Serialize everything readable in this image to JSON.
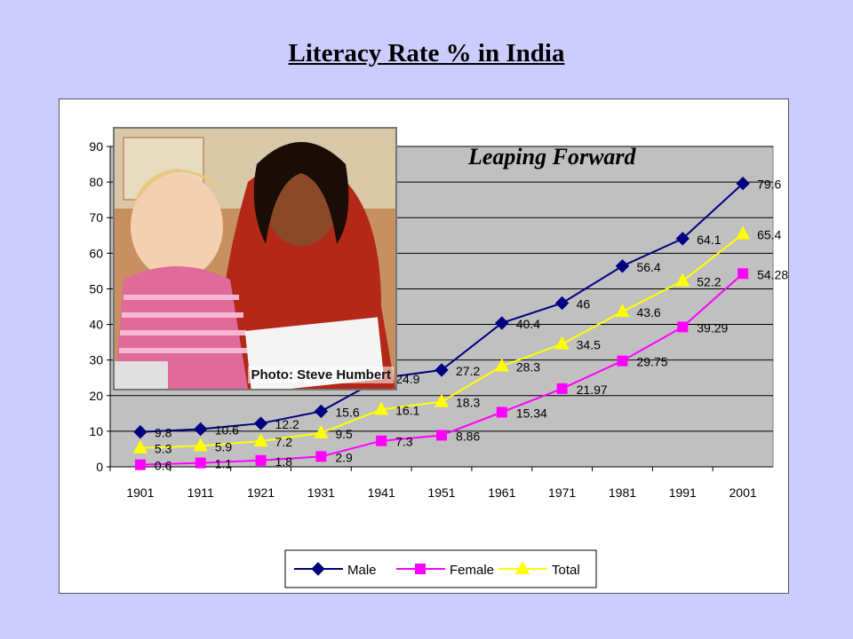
{
  "slide": {
    "title": "Literacy Rate % in India",
    "overlay_text": "Leaping Forward",
    "photo_credit": "Photo: Steve Humbert"
  },
  "colors": {
    "background": "#ccccff",
    "plot_area": "#c0c0c0",
    "male": "#000080",
    "female": "#ff00ff",
    "total": "#ffff00"
  },
  "chart_data": {
    "type": "line",
    "title": "",
    "xlabel": "",
    "ylabel": "",
    "categories": [
      "1901",
      "1911",
      "1921",
      "1931",
      "1941",
      "1951",
      "1961",
      "1971",
      "1981",
      "1991",
      "2001"
    ],
    "ylim": [
      0,
      90
    ],
    "yticks": [
      0,
      10,
      20,
      30,
      40,
      50,
      60,
      70,
      80,
      90
    ],
    "grid": true,
    "legend_position": "bottom",
    "series": [
      {
        "name": "Male",
        "marker": "diamond",
        "values": [
          9.8,
          10.6,
          12.2,
          15.6,
          24.9,
          27.2,
          40.4,
          46,
          56.4,
          64.1,
          79.6
        ],
        "labels": [
          "9.8",
          "10.6",
          "12.2",
          "15.6",
          "24.9",
          "27.2",
          "40.4",
          "46",
          "56.4",
          "64.1",
          "79.6"
        ]
      },
      {
        "name": "Female",
        "marker": "square",
        "values": [
          0.6,
          1.1,
          1.8,
          2.9,
          7.3,
          8.86,
          15.34,
          21.97,
          29.75,
          39.29,
          54.28
        ],
        "labels": [
          "0.6",
          "1.1",
          "1.8",
          "2.9",
          "7.3",
          "8.86",
          "15.34",
          "21.97",
          "29.75",
          "39.29",
          "54.28"
        ]
      },
      {
        "name": "Total",
        "marker": "triangle",
        "values": [
          5.3,
          5.9,
          7.2,
          9.5,
          16.1,
          18.3,
          28.3,
          34.5,
          43.6,
          52.2,
          65.4
        ],
        "labels": [
          "5.3",
          "5.9",
          "7.2",
          "9.5",
          "16.1",
          "18.3",
          "28.3",
          "34.5",
          "43.6",
          "52.2",
          "65.4"
        ]
      }
    ]
  }
}
